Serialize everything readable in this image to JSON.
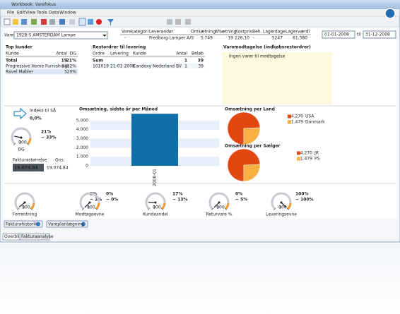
{
  "window": {
    "title": "Workbook: Varefokus",
    "menu": [
      "File",
      "Edit",
      "View",
      "Tools",
      "Data",
      "Window"
    ]
  },
  "filter": {
    "label": "Vare",
    "value": "1928-S AMSTERDAM Lampe",
    "from": "01-01-2008",
    "to_label": "til",
    "to": "31-12-2008"
  },
  "summary": {
    "columns": [
      "Varekategori",
      "Leverandør",
      "Omsætning",
      "Afsætning",
      "Kostpris",
      "Beh.",
      "Lagerdage",
      "Lagerværdi"
    ],
    "values": [
      "-",
      "Fredborg Lamper A/S",
      "5.749",
      "19",
      "226,10",
      "-",
      "5247",
      "61.380"
    ]
  },
  "top_kunder": {
    "title": "Top kunder",
    "columns": [
      "Kunde",
      "Antal",
      "DG"
    ],
    "total": [
      "Total",
      "19",
      "21%"
    ],
    "rows": [
      [
        "Progressive Home Furnishings",
        "14",
        "22%"
      ],
      [
        "Ravel Møbler",
        "5",
        "20%"
      ]
    ]
  },
  "restordrer": {
    "title": "Restordrer til levering",
    "columns": [
      "Ordre",
      "Levering",
      "Kunde",
      "Antal",
      "Beløb"
    ],
    "sum": [
      "Sum",
      "1",
      "39"
    ],
    "rows": [
      [
        "101019",
        "21-01-2008",
        "Candoxy Nederland BV",
        "1",
        "39"
      ]
    ]
  },
  "varemodtagelse": {
    "title": "Varemodtagelse (indkøbsrestordrer)",
    "message": "Ingen varer til modtagelse"
  },
  "indeks": {
    "label": "Indeks til SÅ",
    "value": "0,0%"
  },
  "faktura": {
    "label": "Fakturastørrelse",
    "avg_label": "Gns.",
    "value": "19.074,84",
    "avg": "19.074,84"
  },
  "gauges": [
    {
      "name": "DG",
      "value": 21,
      "value_label": "21%",
      "trend": "~ 33%",
      "scale": [
        0,
        100
      ]
    },
    {
      "name": "Forrentning",
      "value": 2,
      "value_label": "2%",
      "trend": "~ 2%",
      "scale": [
        0,
        100
      ]
    },
    {
      "name": "Modtageevne",
      "value": 0,
      "value_label": "0%",
      "trend": "~ 0%",
      "scale": [
        0,
        100
      ]
    },
    {
      "name": "Kundeandel",
      "value": 17,
      "value_label": "17%",
      "trend": "~ 13%",
      "scale": [
        0,
        100
      ]
    },
    {
      "name": "Returvare %",
      "value": 0,
      "value_label": "0%",
      "trend": "~ 5%",
      "scale": [
        0,
        100
      ]
    },
    {
      "name": "Leveringsevne",
      "value": 100,
      "value_label": "100%",
      "trend": "~ 100%",
      "scale": [
        0,
        100
      ]
    }
  ],
  "chart_data": [
    {
      "type": "bar",
      "title": "Omsætning, sidste år per Måned",
      "categories": [
        "2008-01"
      ],
      "values": [
        5749
      ],
      "color": "#0e6ea8",
      "ylim": [
        0,
        6000
      ],
      "yticks": [
        0,
        {
          "value": 1000,
          "label": "1.000"
        },
        {
          "value": 2000,
          "label": "2.000"
        },
        {
          "value": 3000,
          "label": "3.000"
        },
        {
          "value": 4000,
          "label": "4.000"
        },
        {
          "value": 5000,
          "label": "5.000"
        }
      ],
      "grid": true
    },
    {
      "type": "pie",
      "title": "Omsætning per Land",
      "categories": [
        "USA",
        "Danmark"
      ],
      "values": [
        4270,
        1479
      ],
      "value_labels": [
        "4.270",
        "1.479"
      ],
      "colors": [
        "#e2470f",
        "#f8b042"
      ]
    },
    {
      "type": "pie",
      "title": "Omsætning per Sælger",
      "categories": [
        "JR",
        "PS"
      ],
      "values": [
        4270,
        1479
      ],
      "value_labels": [
        "4.270",
        "1.479"
      ],
      "colors": [
        "#e2470f",
        "#f8b042"
      ]
    }
  ],
  "buttons": [
    "Fakturahistorik",
    "Vareplanlægning"
  ],
  "tabs": [
    "Overblik",
    "Fakturaanalyse"
  ]
}
